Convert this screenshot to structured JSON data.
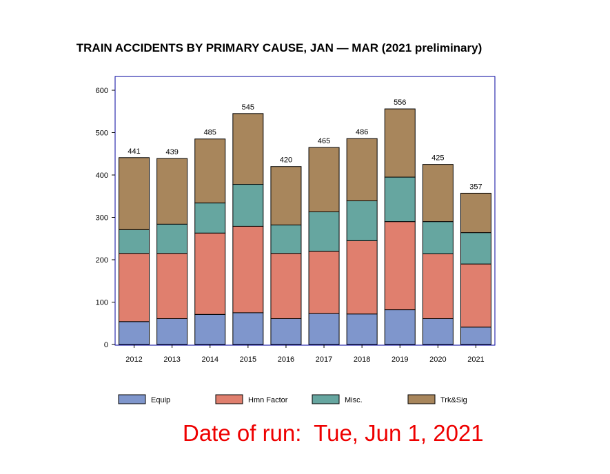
{
  "chart_data": {
    "type": "bar",
    "stacked": true,
    "title": "TRAIN ACCIDENTS BY PRIMARY CAUSE, JAN — MAR (2021 preliminary)",
    "xlabel": "",
    "ylabel": "",
    "ylim": [
      0,
      600
    ],
    "yticks": [
      0,
      100,
      200,
      300,
      400,
      500,
      600
    ],
    "grid": false,
    "legend_position": "bottom",
    "categories": [
      "2012",
      "2013",
      "2014",
      "2015",
      "2016",
      "2017",
      "2018",
      "2019",
      "2020",
      "2021"
    ],
    "series": [
      {
        "name": "Equip",
        "color": "#7f96cc",
        "values": [
          54,
          61,
          71,
          75,
          61,
          73,
          72,
          82,
          61,
          41
        ]
      },
      {
        "name": "Hmn Factor",
        "color": "#e07f6e",
        "values": [
          161,
          154,
          192,
          204,
          154,
          147,
          173,
          208,
          153,
          149
        ]
      },
      {
        "name": "Misc.",
        "color": "#66a6a0",
        "values": [
          56,
          69,
          71,
          99,
          67,
          93,
          94,
          105,
          76,
          74
        ]
      },
      {
        "name": "Trk&Sig",
        "color": "#a8865c",
        "values": [
          170,
          155,
          151,
          167,
          138,
          152,
          147,
          161,
          135,
          93
        ]
      }
    ],
    "totals": [
      441,
      439,
      485,
      545,
      420,
      465,
      486,
      556,
      425,
      357
    ]
  },
  "footer": {
    "run_date": "Date of run:  Tue, Jun 1, 2021"
  },
  "colors": {
    "frame": "#00009c",
    "bar_outline": "#000000",
    "run_date_text": "#ee0000"
  }
}
